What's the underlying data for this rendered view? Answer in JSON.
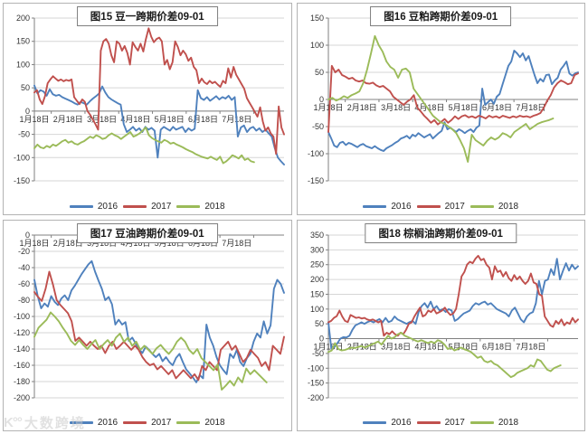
{
  "watermark": {
    "logo": "K°°",
    "text": "大数跨境"
  },
  "colors": {
    "series2016": "#4F81BD",
    "series2017": "#C0504D",
    "series2018": "#9BBB59",
    "grid": "#D6D6D6",
    "axis": "#808080",
    "tick_text": "#333333"
  },
  "chart_data": [
    {
      "type": "line",
      "title": "图15 豆一跨期价差09-01",
      "ylim": [
        -150,
        200
      ],
      "ytick": 50,
      "x_labels": [
        "1月18日",
        "2月18日",
        "3月18日",
        "4月18日",
        "5月18日",
        "6月18日",
        "7月18日"
      ],
      "legend_position": "bottom",
      "grid": true,
      "series": [
        {
          "name": "2016",
          "color": "#4F81BD",
          "span": 1,
          "values": [
            55,
            38,
            45,
            42,
            33,
            47,
            36,
            33,
            35,
            30,
            27,
            24,
            21,
            17,
            14,
            20,
            17,
            14,
            21,
            27,
            32,
            38,
            53,
            40,
            30,
            25,
            21,
            17,
            14,
            -28,
            -45,
            -40,
            -34,
            -42,
            -37,
            -45,
            -34,
            -40,
            -36,
            -42,
            -100,
            -40,
            -34,
            -38,
            -42,
            -34,
            -40,
            -37,
            -34,
            -45,
            -37,
            -42,
            -38,
            45,
            28,
            24,
            30,
            22,
            27,
            32,
            25,
            30,
            27,
            33,
            24,
            30,
            -55,
            -35,
            -31,
            -45,
            -37,
            -34,
            -42,
            -37,
            -45,
            -40,
            -48,
            -55,
            -80,
            -100,
            -108,
            -115
          ]
        },
        {
          "name": "2017",
          "color": "#C0504D",
          "span": 1,
          "values": [
            40,
            45,
            25,
            15,
            32,
            60,
            68,
            75,
            70,
            65,
            68,
            64,
            67,
            65,
            68,
            30,
            22,
            15,
            25,
            20,
            0,
            -8,
            -18,
            -28,
            -40,
            130,
            150,
            155,
            145,
            120,
            105,
            150,
            145,
            130,
            140,
            125,
            100,
            148,
            138,
            130,
            145,
            128,
            155,
            178,
            160,
            148,
            155,
            158,
            150,
            100,
            110,
            90,
            105,
            150,
            138,
            120,
            130,
            122,
            108,
            115,
            95,
            88,
            60,
            70,
            62,
            58,
            65,
            60,
            63,
            57,
            52,
            65,
            60,
            92,
            72,
            95,
            78,
            68,
            58,
            48,
            28,
            18,
            8,
            -2,
            -12,
            8,
            -22,
            -42,
            -35,
            -48,
            -55,
            -92,
            10,
            -35,
            -50
          ]
        },
        {
          "name": "2018",
          "color": "#9BBB59",
          "span": 0.88,
          "values": [
            -80,
            -72,
            -78,
            -80,
            -75,
            -78,
            -72,
            -75,
            -70,
            -65,
            -62,
            -68,
            -65,
            -70,
            -72,
            -68,
            -65,
            -60,
            -55,
            -58,
            -52,
            -55,
            -60,
            -58,
            -52,
            -48,
            -52,
            -55,
            -60,
            -55,
            -50,
            -45,
            -55,
            -52,
            -48,
            -42,
            -35,
            -52,
            -58,
            -62,
            -65,
            -68,
            -62,
            -65,
            -70,
            -68,
            -72,
            -75,
            -78,
            -82,
            -85,
            -88,
            -92,
            -95,
            -98,
            -100,
            -102,
            -98,
            -102,
            -105,
            -98,
            -112,
            -108,
            -102,
            -95,
            -98,
            -102,
            -95,
            -105,
            -102,
            -108,
            -110
          ]
        }
      ]
    },
    {
      "type": "line",
      "title": "图16 豆粕跨期价差09-01",
      "ylim": [
        -150,
        150
      ],
      "ytick": 50,
      "x_labels": [
        "1月18日",
        "2月18日",
        "3月18日",
        "4月18日",
        "5月18日",
        "6月18日",
        "7月18日"
      ],
      "legend_position": "bottom",
      "grid": true,
      "series": [
        {
          "name": "2016",
          "color": "#4F81BD",
          "span": 1,
          "values": [
            -60,
            -72,
            -85,
            -88,
            -80,
            -78,
            -84,
            -80,
            -82,
            -85,
            -88,
            -84,
            -82,
            -86,
            -88,
            -90,
            -86,
            -90,
            -93,
            -95,
            -90,
            -87,
            -84,
            -80,
            -77,
            -72,
            -70,
            -67,
            -72,
            -65,
            -68,
            -62,
            -66,
            -70,
            -67,
            -64,
            -72,
            -67,
            -62,
            -58,
            -42,
            -55,
            -52,
            -56,
            -60,
            -55,
            -58,
            -62,
            -58,
            -55,
            -60,
            -52,
            -48,
            20,
            -10,
            -5,
            0,
            -8,
            5,
            10,
            28,
            45,
            62,
            70,
            90,
            85,
            78,
            85,
            72,
            80,
            62,
            45,
            30,
            38,
            33,
            45,
            46,
            28,
            35,
            40,
            55,
            62,
            70,
            48,
            44,
            48,
            50
          ]
        },
        {
          "name": "2017",
          "color": "#C0504D",
          "span": 1,
          "values": [
            -60,
            62,
            50,
            55,
            45,
            42,
            38,
            40,
            35,
            33,
            35,
            30,
            29,
            31,
            26,
            23,
            25,
            20,
            15,
            5,
            0,
            -5,
            -10,
            -4,
            0,
            8,
            -15,
            -22,
            -30,
            -36,
            -43,
            -38,
            -46,
            -41,
            -36,
            -43,
            -38,
            -31,
            -36,
            -31,
            -29,
            -33,
            -31,
            -34,
            -30,
            -32,
            -35,
            -30,
            -33,
            -31,
            -34,
            -30,
            -32,
            -34,
            -31,
            -33,
            -30,
            -32,
            -31,
            -33,
            -30,
            -28,
            -25,
            -15,
            -2,
            8,
            22,
            30,
            35,
            32,
            28,
            30,
            45,
            48
          ]
        },
        {
          "name": "2018",
          "color": "#9BBB59",
          "span": 0.9,
          "values": [
            0,
            3,
            -2,
            1,
            6,
            3,
            8,
            11,
            15,
            30,
            55,
            85,
            117,
            100,
            88,
            70,
            60,
            55,
            40,
            55,
            57,
            50,
            20,
            10,
            0,
            -10,
            -20,
            -30,
            -36,
            -42,
            -45,
            -50,
            -55,
            -62,
            -75,
            -90,
            -115,
            -65,
            -75,
            -80,
            -85,
            -76,
            -70,
            -74,
            -70,
            -62,
            -65,
            -70,
            -60,
            -55,
            -50,
            -45,
            -55,
            -50,
            -45,
            -42,
            -40,
            -38,
            -35
          ]
        }
      ]
    },
    {
      "type": "line",
      "title": "图17 豆油跨期价差09-01",
      "ylim": [
        -200,
        0
      ],
      "ytick": 20,
      "x_labels": [
        "1月18日",
        "2月18日",
        "3月18日",
        "4月18日",
        "5月18日",
        "6月18日",
        "7月18日"
      ],
      "legend_position": "bottom",
      "grid": true,
      "series": [
        {
          "name": "2016",
          "color": "#4F81BD",
          "span": 1,
          "values": [
            -55,
            -75,
            -90,
            -84,
            -88,
            -75,
            -82,
            -86,
            -78,
            -74,
            -80,
            -68,
            -62,
            -55,
            -48,
            -42,
            -36,
            -32,
            -45,
            -56,
            -66,
            -80,
            -76,
            -85,
            -110,
            -104,
            -110,
            -107,
            -130,
            -126,
            -133,
            -140,
            -145,
            -137,
            -141,
            -146,
            -150,
            -146,
            -155,
            -150,
            -156,
            -160,
            -151,
            -146,
            -156,
            -165,
            -170,
            -175,
            -181,
            -172,
            -176,
            -110,
            -126,
            -136,
            -150,
            -160,
            -166,
            -171,
            -146,
            -151,
            -141,
            -156,
            -161,
            -151,
            -146,
            -131,
            -121,
            -126,
            -106,
            -121,
            -111,
            -66,
            -55,
            -60,
            -71
          ]
        },
        {
          "name": "2017",
          "color": "#C0504D",
          "span": 1,
          "values": [
            -70,
            -76,
            -81,
            -66,
            -45,
            -61,
            -80,
            -86,
            -91,
            -96,
            -106,
            -130,
            -126,
            -131,
            -136,
            -131,
            -136,
            -140,
            -136,
            -145,
            -136,
            -131,
            -140,
            -136,
            -131,
            -136,
            -141,
            -136,
            -141,
            -150,
            -156,
            -160,
            -158,
            -165,
            -161,
            -166,
            -171,
            -166,
            -176,
            -171,
            -166,
            -171,
            -176,
            -171,
            -178,
            -161,
            -166,
            -156,
            -161,
            -166,
            -141,
            -136,
            -131,
            -141,
            -136,
            -146,
            -156,
            -151,
            -141,
            -146,
            -151,
            -161,
            -156,
            -166,
            -136,
            -141,
            -146,
            -125
          ]
        },
        {
          "name": "2018",
          "color": "#9BBB59",
          "span": 0.93,
          "values": [
            -125,
            -114,
            -109,
            -104,
            -95,
            -100,
            -106,
            -114,
            -121,
            -130,
            -135,
            -129,
            -135,
            -140,
            -134,
            -129,
            -140,
            -134,
            -129,
            -136,
            -126,
            -121,
            -131,
            -126,
            -136,
            -131,
            -141,
            -136,
            -141,
            -146,
            -139,
            -135,
            -141,
            -146,
            -140,
            -131,
            -126,
            -131,
            -141,
            -146,
            -140,
            -151,
            -156,
            -161,
            -166,
            -159,
            -190,
            -185,
            -179,
            -185,
            -175,
            -181,
            -164,
            -171,
            -166,
            -171,
            -176,
            -181
          ]
        }
      ]
    },
    {
      "type": "line",
      "title": "图18 棕榈油跨期价差09-01",
      "ylim": [
        -200,
        350
      ],
      "ytick": 50,
      "x_labels": [
        "1月18日",
        "2月18日",
        "3月18日",
        "4月18日",
        "5月18日",
        "6月18日",
        "7月18日"
      ],
      "legend_position": "bottom",
      "grid": true,
      "series": [
        {
          "name": "2016",
          "color": "#4F81BD",
          "span": 1,
          "values": [
            55,
            -35,
            -28,
            -15,
            0,
            5,
            4,
            10,
            30,
            45,
            50,
            55,
            50,
            56,
            60,
            55,
            61,
            66,
            55,
            70,
            56,
            60,
            75,
            65,
            60,
            55,
            50,
            56,
            60,
            50,
            90,
            110,
            120,
            105,
            125,
            100,
            110,
            95,
            100,
            90,
            100,
            95,
            60,
            66,
            76,
            85,
            90,
            95,
            110,
            120,
            115,
            121,
            125,
            115,
            120,
            110,
            100,
            95,
            90,
            85,
            75,
            95,
            105,
            85,
            65,
            55,
            75,
            85,
            90,
            120,
            195,
            150,
            195,
            200,
            235,
            215,
            270,
            200,
            230,
            255,
            230,
            250,
            235,
            245
          ]
        },
        {
          "name": "2017",
          "color": "#C0504D",
          "span": 1,
          "values": [
            55,
            60,
            70,
            76,
            95,
            75,
            60,
            56,
            80,
            75,
            70,
            72,
            68,
            70,
            65,
            62,
            65,
            60,
            55,
            60,
            10,
            20,
            15,
            25,
            15,
            10,
            20,
            15,
            30,
            50,
            55,
            75,
            90,
            105,
            75,
            80,
            95,
            90,
            100,
            85,
            90,
            95,
            105,
            90,
            80,
            85,
            100,
            150,
            210,
            225,
            250,
            260,
            255,
            270,
            280,
            265,
            270,
            250,
            240,
            200,
            245,
            225,
            230,
            210,
            225,
            205,
            195,
            215,
            200,
            210,
            195,
            185,
            195,
            220,
            190,
            185,
            150,
            145,
            75,
            60,
            45,
            40,
            60,
            50,
            65,
            45,
            55,
            50,
            70,
            55,
            65
          ]
        },
        {
          "name": "2018",
          "color": "#9BBB59",
          "span": 0.93,
          "values": [
            -45,
            -40,
            -15,
            -35,
            -40,
            -38,
            -34,
            -30,
            -32,
            -28,
            -25,
            -30,
            -25,
            -20,
            -15,
            -10,
            -20,
            -5,
            10,
            0,
            5,
            15,
            20,
            10,
            5,
            0,
            -5,
            -10,
            -5,
            -10,
            -15,
            -10,
            -15,
            -5,
            -10,
            -20,
            -35,
            -30,
            -40,
            -35,
            -30,
            -36,
            -40,
            -45,
            -55,
            -65,
            -60,
            -75,
            -80,
            -75,
            -85,
            -90,
            -100,
            -110,
            -120,
            -130,
            -125,
            -115,
            -110,
            -105,
            -100,
            -90,
            -95,
            -70,
            -75,
            -90,
            -105,
            -110,
            -100,
            -95,
            -90
          ]
        }
      ]
    }
  ]
}
